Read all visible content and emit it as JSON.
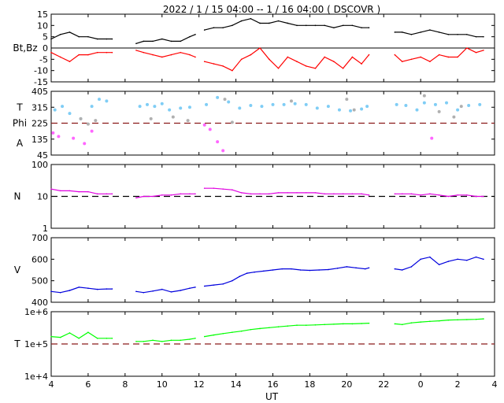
{
  "title": "2022 /  1 / 15   04:00 --  1 / 16   04:00 ( DSCOVR )",
  "xlabel": "UT",
  "colors": {
    "bt": "#000000",
    "bz": "#ff0000",
    "theta": "#7fcdf5",
    "phi_gray": "#b0b0b0",
    "phi_magenta": "#ff66ff",
    "density": "#e000e0",
    "speed": "#0000dd",
    "temperature": "#00ff00",
    "dashed_ref": "#8b1a1a"
  },
  "chart_data": [
    {
      "type": "line",
      "panel": "magnetic-field",
      "ylabel": "Bt,Bz",
      "ylim": [
        -15,
        15
      ],
      "yticks": [
        "15",
        "10",
        "5",
        "0",
        "-5",
        "-10",
        "-15"
      ],
      "xlim": [
        4,
        28
      ],
      "xticks": [
        "4",
        "6",
        "8",
        "10",
        "12",
        "14",
        "16",
        "18",
        "20",
        "22",
        "0",
        "2",
        "4"
      ],
      "gaps": [
        [
          7.3,
          8.6
        ],
        [
          11.8,
          12.3
        ],
        [
          21.2,
          22.6
        ]
      ],
      "series": [
        {
          "key": "bt",
          "x": [
            4.0,
            4.5,
            5.0,
            5.5,
            6.0,
            6.5,
            7.0,
            7.3,
            8.6,
            9.0,
            9.5,
            10.0,
            10.5,
            11.0,
            11.5,
            11.8,
            12.3,
            12.8,
            13.3,
            13.8,
            14.3,
            14.8,
            15.3,
            15.8,
            16.3,
            16.8,
            17.3,
            17.8,
            18.3,
            18.8,
            19.3,
            19.8,
            20.3,
            20.8,
            21.2,
            22.6,
            23.0,
            23.5,
            24.0,
            24.5,
            25.0,
            25.5,
            26.0,
            26.5,
            27.0,
            27.4
          ],
          "y": [
            4,
            6,
            7,
            5,
            5,
            4,
            4,
            4,
            2,
            3,
            3,
            4,
            3,
            3,
            5,
            6,
            8,
            9,
            9,
            10,
            12,
            13,
            11,
            11,
            12,
            11,
            10,
            10,
            10,
            10,
            9,
            10,
            10,
            9,
            9,
            7,
            7,
            6,
            7,
            8,
            7,
            6,
            6,
            6,
            5,
            5
          ]
        },
        {
          "key": "bz",
          "x": [
            4.0,
            4.5,
            5.0,
            5.5,
            6.0,
            6.5,
            7.0,
            7.3,
            8.6,
            9.0,
            9.5,
            10.0,
            10.5,
            11.0,
            11.5,
            11.8,
            12.3,
            12.8,
            13.3,
            13.8,
            14.3,
            14.8,
            15.3,
            15.8,
            16.3,
            16.8,
            17.3,
            17.8,
            18.3,
            18.8,
            19.3,
            19.8,
            20.3,
            20.8,
            21.2,
            22.6,
            23.0,
            23.5,
            24.0,
            24.5,
            25.0,
            25.5,
            26.0,
            26.5,
            27.0,
            27.4
          ],
          "y": [
            -2,
            -4,
            -6,
            -3,
            -3,
            -2,
            -2,
            -2,
            -1,
            -2,
            -3,
            -4,
            -3,
            -2,
            -3,
            -4,
            -6,
            -7,
            -8,
            -10,
            -5,
            -3,
            0,
            -5,
            -9,
            -4,
            -6,
            -8,
            -9,
            -4,
            -6,
            -9,
            -4,
            -7,
            -3,
            -3,
            -6,
            -5,
            -4,
            -6,
            -3,
            -4,
            -4,
            0,
            -2,
            -1
          ]
        }
      ]
    },
    {
      "type": "scatter",
      "panel": "angles",
      "ylabels": [
        "T",
        "Phi",
        "A"
      ],
      "ylim": [
        45,
        405
      ],
      "yticks": [
        "405",
        "315",
        "225",
        "135",
        "45"
      ],
      "reference_line": 225,
      "series": [
        {
          "key": "theta",
          "x": [
            4.2,
            4.6,
            5.0,
            5.6,
            6.2,
            6.6,
            7.0,
            8.8,
            9.2,
            9.6,
            10.0,
            10.4,
            11.0,
            11.5,
            12.4,
            13.0,
            13.6,
            14.2,
            14.8,
            15.4,
            16.0,
            16.6,
            17.2,
            17.8,
            18.4,
            19.0,
            19.6,
            20.2,
            20.8,
            21.1,
            22.7,
            23.2,
            23.8,
            24.2,
            24.8,
            25.4,
            26.0,
            26.6,
            27.2
          ],
          "y": [
            300,
            320,
            280,
            250,
            320,
            360,
            350,
            320,
            330,
            320,
            335,
            300,
            310,
            315,
            330,
            370,
            345,
            310,
            325,
            320,
            330,
            330,
            335,
            330,
            310,
            320,
            300,
            295,
            305,
            320,
            330,
            325,
            300,
            340,
            330,
            340,
            300,
            325,
            330
          ]
        },
        {
          "key": "phi_gray",
          "x": [
            5.6,
            6.0,
            6.4,
            9.4,
            10.6,
            11.4,
            13.4,
            13.8,
            17.0,
            20.0,
            20.4,
            24.2,
            25.0,
            25.8,
            26.2
          ],
          "y": [
            250,
            220,
            240,
            250,
            260,
            240,
            360,
            230,
            350,
            360,
            300,
            380,
            290,
            260,
            320
          ]
        },
        {
          "key": "phi_magenta",
          "x": [
            4.1,
            4.4,
            5.2,
            5.8,
            6.2,
            12.3,
            12.6,
            13.0,
            13.3,
            24.6
          ],
          "y": [
            170,
            150,
            140,
            110,
            180,
            215,
            190,
            120,
            70,
            140
          ]
        }
      ]
    },
    {
      "type": "line",
      "panel": "density",
      "ylabel": "N",
      "yscale": "log",
      "ylim": [
        1,
        100
      ],
      "yticks": [
        "100",
        "10",
        "1"
      ],
      "reference_line": 10,
      "series": [
        {
          "key": "density",
          "x": [
            4.0,
            4.5,
            5.0,
            5.5,
            6.0,
            6.5,
            7.0,
            7.3,
            8.6,
            9.0,
            9.5,
            10.0,
            10.5,
            11.0,
            11.5,
            11.8,
            12.3,
            12.8,
            13.3,
            13.8,
            14.3,
            14.8,
            15.3,
            15.8,
            16.3,
            16.8,
            17.3,
            17.8,
            18.3,
            18.8,
            19.3,
            19.8,
            20.3,
            20.8,
            21.2,
            22.6,
            23.0,
            23.5,
            24.0,
            24.5,
            25.0,
            25.5,
            26.0,
            26.5,
            27.0,
            27.4
          ],
          "y": [
            17,
            15,
            15,
            14,
            14,
            12,
            12,
            12,
            9,
            10,
            10,
            11,
            11,
            12,
            12,
            12,
            18,
            18,
            17,
            16,
            13,
            12,
            12,
            12,
            13,
            13,
            13,
            13,
            13,
            12,
            12,
            12,
            12,
            12,
            11,
            12,
            12,
            12,
            11,
            12,
            11,
            10,
            11,
            11,
            10,
            10
          ]
        }
      ]
    },
    {
      "type": "line",
      "panel": "speed",
      "ylabel": "V",
      "ylim": [
        400,
        700
      ],
      "yticks": [
        "700",
        "600",
        "500",
        "400"
      ],
      "series": [
        {
          "key": "speed",
          "x": [
            4.0,
            4.5,
            5.0,
            5.5,
            6.0,
            6.5,
            7.0,
            7.3,
            8.6,
            9.0,
            9.5,
            10.0,
            10.5,
            11.0,
            11.5,
            11.8,
            12.3,
            12.8,
            13.3,
            13.8,
            14.2,
            14.6,
            15.0,
            15.5,
            16.0,
            16.5,
            17.0,
            17.5,
            18.0,
            18.5,
            19.0,
            19.5,
            20.0,
            20.5,
            21.0,
            21.2,
            22.6,
            23.0,
            23.5,
            24.0,
            24.5,
            25.0,
            25.5,
            26.0,
            26.5,
            27.0,
            27.4
          ],
          "y": [
            450,
            445,
            455,
            470,
            465,
            460,
            462,
            462,
            450,
            445,
            452,
            460,
            448,
            455,
            465,
            470,
            475,
            480,
            485,
            500,
            520,
            535,
            540,
            545,
            550,
            555,
            555,
            550,
            548,
            550,
            552,
            558,
            565,
            560,
            555,
            560,
            555,
            550,
            565,
            600,
            610,
            575,
            590,
            600,
            595,
            610,
            600
          ]
        }
      ]
    },
    {
      "type": "line",
      "panel": "temperature",
      "ylabel": "T",
      "yscale": "log",
      "ylim": [
        10000,
        1000000
      ],
      "yticks": [
        "1e+6",
        "1e+5",
        "1e+4"
      ],
      "reference_line": 100000,
      "series": [
        {
          "key": "temperature",
          "x": [
            4.0,
            4.5,
            5.0,
            5.5,
            6.0,
            6.5,
            7.0,
            7.3,
            8.6,
            9.0,
            9.5,
            10.0,
            10.5,
            11.0,
            11.5,
            11.8,
            12.3,
            12.8,
            13.3,
            13.8,
            14.3,
            14.8,
            15.3,
            15.8,
            16.3,
            16.8,
            17.3,
            17.8,
            18.3,
            18.8,
            19.3,
            19.8,
            20.3,
            20.8,
            21.2,
            22.6,
            23.0,
            23.5,
            24.0,
            24.5,
            25.0,
            25.5,
            26.0,
            26.5,
            27.0,
            27.4
          ],
          "y": [
            170000,
            160000,
            220000,
            150000,
            230000,
            150000,
            150000,
            150000,
            120000,
            120000,
            130000,
            120000,
            130000,
            130000,
            140000,
            150000,
            170000,
            190000,
            210000,
            230000,
            250000,
            280000,
            300000,
            320000,
            340000,
            360000,
            380000,
            380000,
            390000,
            400000,
            410000,
            420000,
            420000,
            430000,
            440000,
            420000,
            400000,
            450000,
            480000,
            500000,
            520000,
            550000,
            560000,
            570000,
            580000,
            600000
          ]
        }
      ]
    }
  ]
}
